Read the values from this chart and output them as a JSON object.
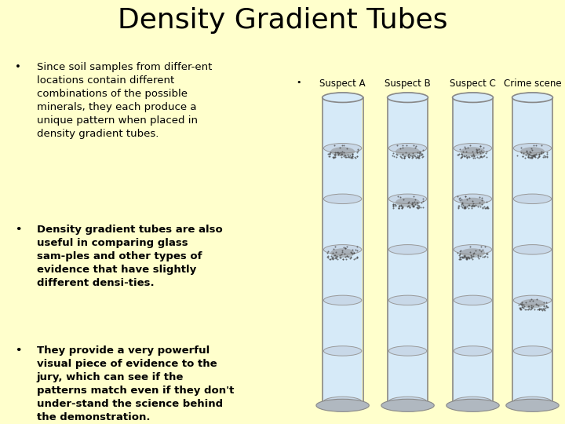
{
  "title": "Density Gradient Tubes",
  "title_fontsize": 26,
  "background_color": "#FFFFCC",
  "bullet1_text": "Since soil samples from differ-ent\nlocations contain different\ncombinations of the possible\nminerals, they each produce a\nunique pattern when placed in\ndensity gradient tubes.",
  "bullet1_bold": false,
  "bullet2_text": "Density gradient tubes are also\nuseful in comparing glass\nsam-ples and other types of\nevidence that have slightly\ndifferent densi-ties.",
  "bullet2_bold": true,
  "bullet3_text": "They provide a very powerful\nvisual piece of evidence to the\njury, which can see if the\npatterns match even if they don't\nunder-stand the science behind\nthe demonstration.",
  "bullet3_bold": true,
  "tube_labels": [
    "Suspect A",
    "Suspect B",
    "Suspect C",
    "Crime scene"
  ],
  "text_color": "#000000",
  "label_fontsize": 8.5,
  "bullet_fontsize": 9.5,
  "right_bullet_label": "Suspect A  Suspect B     Suspect C       Crime scene"
}
